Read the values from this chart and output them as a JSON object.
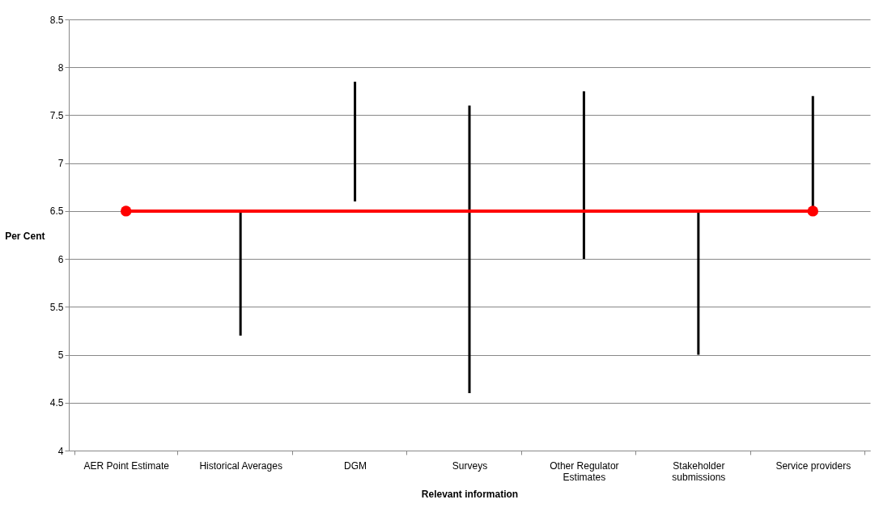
{
  "chart_data": {
    "type": "bar",
    "xlabel": "Relevant information",
    "ylabel": "Per Cent",
    "categories": [
      "AER Point Estimate",
      "Historical Averages",
      "DGM",
      "Surveys",
      "Other Regulator Estimates",
      "Stakeholder submissions",
      "Service providers"
    ],
    "series": [
      {
        "color": "#000000",
        "values": [
          null,
          1.3,
          1.25,
          3.0,
          1.75,
          1.5,
          1.2
        ],
        "base": [
          null,
          5.2,
          6.6,
          4.6,
          6.0,
          5.0,
          6.5
        ]
      },
      {
        "type": "line",
        "color": "#ff0000",
        "x": [
          "AER Point Estimate",
          "Service providers"
        ],
        "values": [
          6.5,
          6.5
        ],
        "marker": "circle"
      }
    ],
    "ylim": [
      4,
      8.5
    ],
    "yticks": [
      4,
      4.5,
      5,
      5.5,
      6,
      6.5,
      7,
      7.5,
      8,
      8.5
    ],
    "grid": "y"
  }
}
